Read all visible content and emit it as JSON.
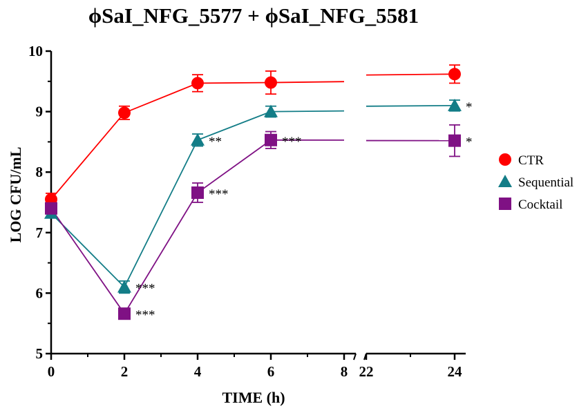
{
  "chart_data": {
    "type": "line",
    "title": "ϕSaI_NFG_5577 + ϕSaI_NFG_5581",
    "xlabel": "TIME (h)",
    "ylabel": "LOG CFU/mL",
    "ylim": [
      5,
      10
    ],
    "yticks": [
      "5",
      "6",
      "7",
      "8",
      "9",
      "10"
    ],
    "xticks": [
      "0",
      "2",
      "4",
      "6",
      "8",
      "22",
      "24"
    ],
    "x_axis_break": [
      8,
      22
    ],
    "legend_position": "right",
    "series": [
      {
        "name": "CTR",
        "color": "#ff0000",
        "marker": "circle",
        "x": [
          0,
          2,
          4,
          6,
          24
        ],
        "y": [
          7.55,
          8.98,
          9.47,
          9.48,
          9.62
        ],
        "err": [
          0.1,
          0.11,
          0.14,
          0.19,
          0.15
        ],
        "annotations": [
          "",
          "",
          "",
          "",
          ""
        ]
      },
      {
        "name": "Sequential",
        "color": "#137d87",
        "marker": "triangle",
        "x": [
          0,
          2,
          4,
          6,
          24
        ],
        "y": [
          7.32,
          6.1,
          8.53,
          9.0,
          9.1
        ],
        "err": [
          0.06,
          0.1,
          0.1,
          0.09,
          0.09
        ],
        "annotations": [
          "",
          "***",
          "**",
          "",
          "*"
        ]
      },
      {
        "name": "Cocktail",
        "color": "#7f1184",
        "marker": "square",
        "x": [
          0,
          2,
          4,
          6,
          24
        ],
        "y": [
          7.4,
          5.66,
          7.66,
          8.53,
          8.52
        ],
        "err": [
          0.08,
          0.03,
          0.16,
          0.14,
          0.26
        ],
        "annotations": [
          "",
          "***",
          "***",
          "***",
          "*"
        ]
      }
    ]
  }
}
